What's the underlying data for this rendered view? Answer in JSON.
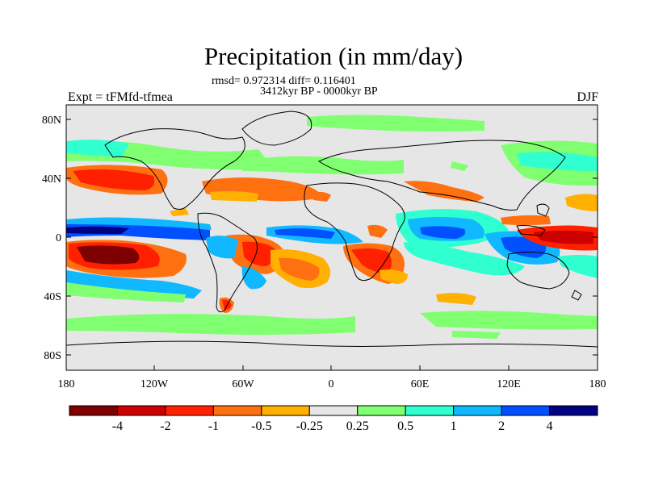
{
  "title": "Precipitation (in mm/day)",
  "stats": "rmsd= 0.972314 diff= 0.116401",
  "period": "3412kyr BP - 0000kyr BP",
  "experiment": "Expt = tFMfd-tfmea",
  "season": "DJF",
  "y_axis": {
    "ticks": [
      "80N",
      "40N",
      "0",
      "40S",
      "80S"
    ]
  },
  "x_axis": {
    "ticks": [
      "180",
      "120W",
      "60W",
      "0",
      "60E",
      "120E",
      "180"
    ]
  },
  "colorbar": {
    "labels": [
      "-4",
      "-2",
      "-1",
      "-0.5",
      "-0.25",
      "0.25",
      "0.5",
      "1",
      "2",
      "4"
    ],
    "colors": [
      "#7f0000",
      "#cc0000",
      "#ff2000",
      "#ff7010",
      "#ffb000",
      "#e6e6e6",
      "#80ff70",
      "#30ffd0",
      "#10b8ff",
      "#0050ff",
      "#000080"
    ]
  },
  "map_background": "#e6e6e6"
}
